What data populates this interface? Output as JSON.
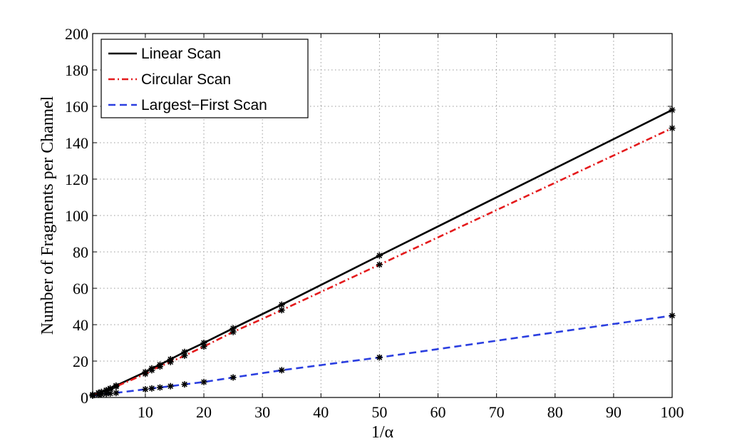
{
  "chart_data": {
    "type": "line",
    "title": "",
    "xlabel": "1/α",
    "ylabel": "Number of Fragments per Channel",
    "xlim": [
      1,
      100
    ],
    "ylim": [
      0,
      200
    ],
    "xticks": [
      10,
      20,
      30,
      40,
      50,
      60,
      70,
      80,
      90,
      100
    ],
    "yticks": [
      0,
      20,
      40,
      60,
      80,
      100,
      120,
      140,
      160,
      180,
      200
    ],
    "grid": true,
    "legend_position": "top-left",
    "markers": "asterisk",
    "series": [
      {
        "name": "Linear Scan",
        "color": "#000000",
        "style": "solid",
        "x": [
          1,
          2,
          2.5,
          3.33,
          4,
          5,
          10,
          11.1,
          12.5,
          14.3,
          16.7,
          20,
          25,
          33.3,
          50,
          100
        ],
        "y": [
          1.5,
          2.5,
          3,
          4,
          5,
          6.5,
          14,
          16,
          18,
          21,
          25,
          30,
          38,
          51,
          78,
          158
        ]
      },
      {
        "name": "Circular Scan",
        "color": "#e41a1c",
        "style": "dashdot",
        "x": [
          1,
          2,
          2.5,
          3.33,
          4,
          5,
          10,
          11.1,
          12.5,
          14.3,
          16.7,
          20,
          25,
          33.3,
          50,
          100
        ],
        "y": [
          1.5,
          2.5,
          3,
          3.8,
          4.5,
          6,
          13,
          15,
          17,
          19.5,
          23,
          28,
          36,
          48,
          73,
          148
        ]
      },
      {
        "name": "Largest−First Scan",
        "color": "#2b3fe0",
        "style": "dashed",
        "x": [
          1,
          2,
          2.5,
          3.33,
          4,
          5,
          10,
          11.1,
          12.5,
          14.3,
          16.7,
          20,
          25,
          33.3,
          50,
          100
        ],
        "y": [
          1,
          1.5,
          1.7,
          2,
          2.2,
          2.5,
          4.5,
          5,
          5.5,
          6.2,
          7.2,
          8.5,
          11,
          15,
          22,
          45
        ]
      }
    ]
  }
}
